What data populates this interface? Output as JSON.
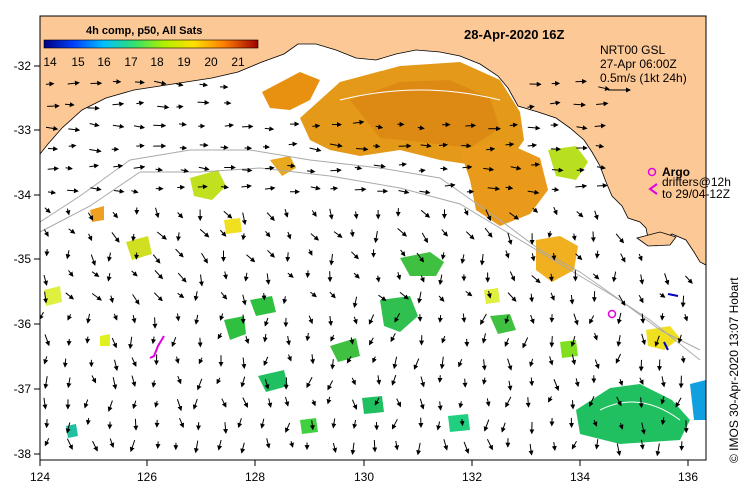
{
  "title": "28-Apr-2020 16Z",
  "colorbar": {
    "title": "4h comp, p50, All Sats",
    "ticks": [
      "14",
      "15",
      "16",
      "17",
      "18",
      "19",
      "20",
      "21"
    ]
  },
  "current_legend": {
    "line1": "NRT00 GSL",
    "line2": "27-Apr 06:00Z",
    "line3": "0.5m/s (1kt 24h)"
  },
  "argo_legend": {
    "argo": "Argo",
    "drifters": "drifters@12h",
    "to": "to 29/04-12Z"
  },
  "credit": "© IMOS 30-Apr-2020 13:07 Hobart",
  "axes": {
    "x_ticks": [
      "124",
      "126",
      "128",
      "130",
      "132",
      "134",
      "136"
    ],
    "y_ticks": [
      "-32",
      "-33",
      "-34",
      "-35",
      "-36",
      "-37",
      "-38"
    ]
  },
  "colors": {
    "land": "#FCC896",
    "argo": "#E000E0"
  }
}
